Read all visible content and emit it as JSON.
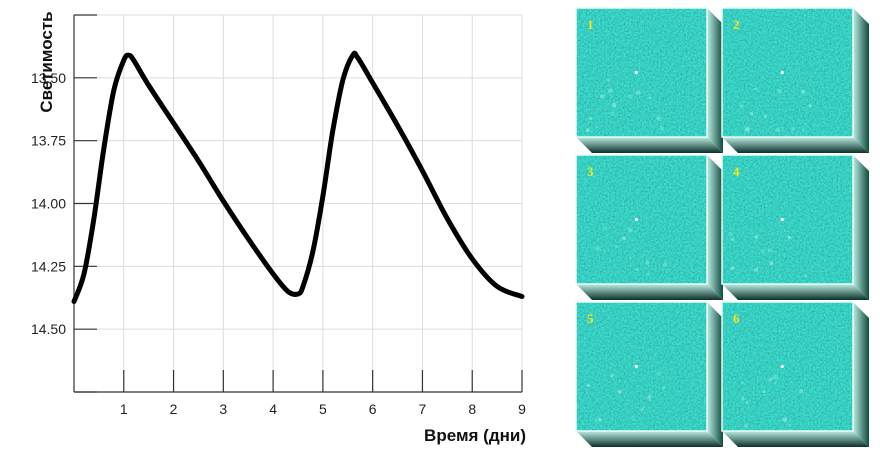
{
  "chart_data": {
    "type": "line",
    "xlabel": "Время (дни)",
    "ylabel": "Светимость",
    "xlim": [
      0,
      9
    ],
    "ylim": [
      14.75,
      13.25
    ],
    "y_axis_inverted": true,
    "x_ticks": [
      1,
      2,
      3,
      4,
      5,
      6,
      7,
      8,
      9
    ],
    "x_tick_labels": [
      "1",
      "2",
      "3",
      "4",
      "5",
      "6",
      "7",
      "8",
      "9"
    ],
    "y_ticks": [
      13.5,
      13.75,
      14.0,
      14.25,
      14.5
    ],
    "y_tick_labels": [
      "13.50",
      "13.75",
      "14.00",
      "14.25",
      "14.50"
    ],
    "grid": true,
    "series": [
      {
        "color": "#000000",
        "x": [
          0.0,
          0.2,
          0.4,
          0.6,
          0.8,
          1.0,
          1.1,
          1.2,
          1.5,
          2.0,
          2.5,
          3.0,
          3.5,
          4.0,
          4.3,
          4.5,
          4.6,
          4.8,
          5.0,
          5.2,
          5.4,
          5.6,
          5.7,
          6.0,
          6.5,
          7.0,
          7.5,
          8.0,
          8.5,
          9.0
        ],
        "y": [
          14.39,
          14.28,
          14.06,
          13.78,
          13.55,
          13.43,
          13.41,
          13.43,
          13.53,
          13.68,
          13.83,
          13.99,
          14.14,
          14.28,
          14.35,
          14.36,
          14.33,
          14.19,
          13.97,
          13.71,
          13.51,
          13.41,
          13.42,
          13.52,
          13.69,
          13.87,
          14.06,
          14.22,
          14.33,
          14.37
        ]
      }
    ]
  },
  "frames": {
    "labels": [
      "1",
      "2",
      "3",
      "4",
      "5",
      "6"
    ],
    "colors": {
      "base": "#0f5a4e",
      "glow": "#7de6d2",
      "edge": "#0b2c25"
    }
  }
}
